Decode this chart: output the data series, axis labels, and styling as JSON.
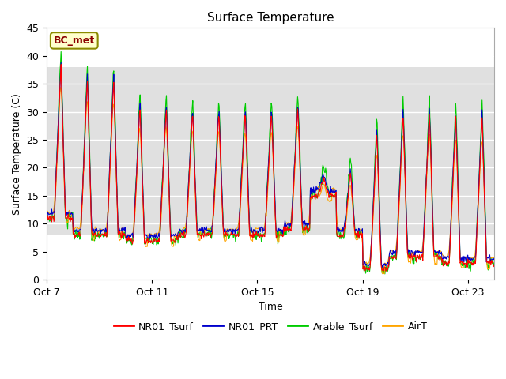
{
  "title": "Surface Temperature",
  "xlabel": "Time",
  "ylabel": "Surface Temperature (C)",
  "ylim": [
    0,
    45
  ],
  "xlim_days": [
    0,
    17
  ],
  "tick_labels": [
    "Oct 7",
    "Oct 11",
    "Oct 15",
    "Oct 19",
    "Oct 23"
  ],
  "tick_positions": [
    0,
    4,
    8,
    12,
    16
  ],
  "annotation_text": "BC_met",
  "annotation_color": "#8B0000",
  "annotation_bg": "#FFFFCC",
  "annotation_border": "#8B8B00",
  "series_colors": {
    "NR01_Tsurf": "#FF0000",
    "NR01_PRT": "#0000CC",
    "Arable_Tsurf": "#00CC00",
    "AirT": "#FFA500"
  },
  "line_width": 0.8,
  "bg_band_color": "#E0E0E0",
  "bg_band_low": 8,
  "bg_band_high": 38,
  "axes_bg": "#FFFFFF",
  "grid_color": "#FFFFFF",
  "legend_colors": [
    "#FF0000",
    "#0000CC",
    "#00CC00",
    "#FFA500"
  ],
  "legend_labels": [
    "NR01_Tsurf",
    "NR01_PRT",
    "Arable_Tsurf",
    "AirT"
  ]
}
